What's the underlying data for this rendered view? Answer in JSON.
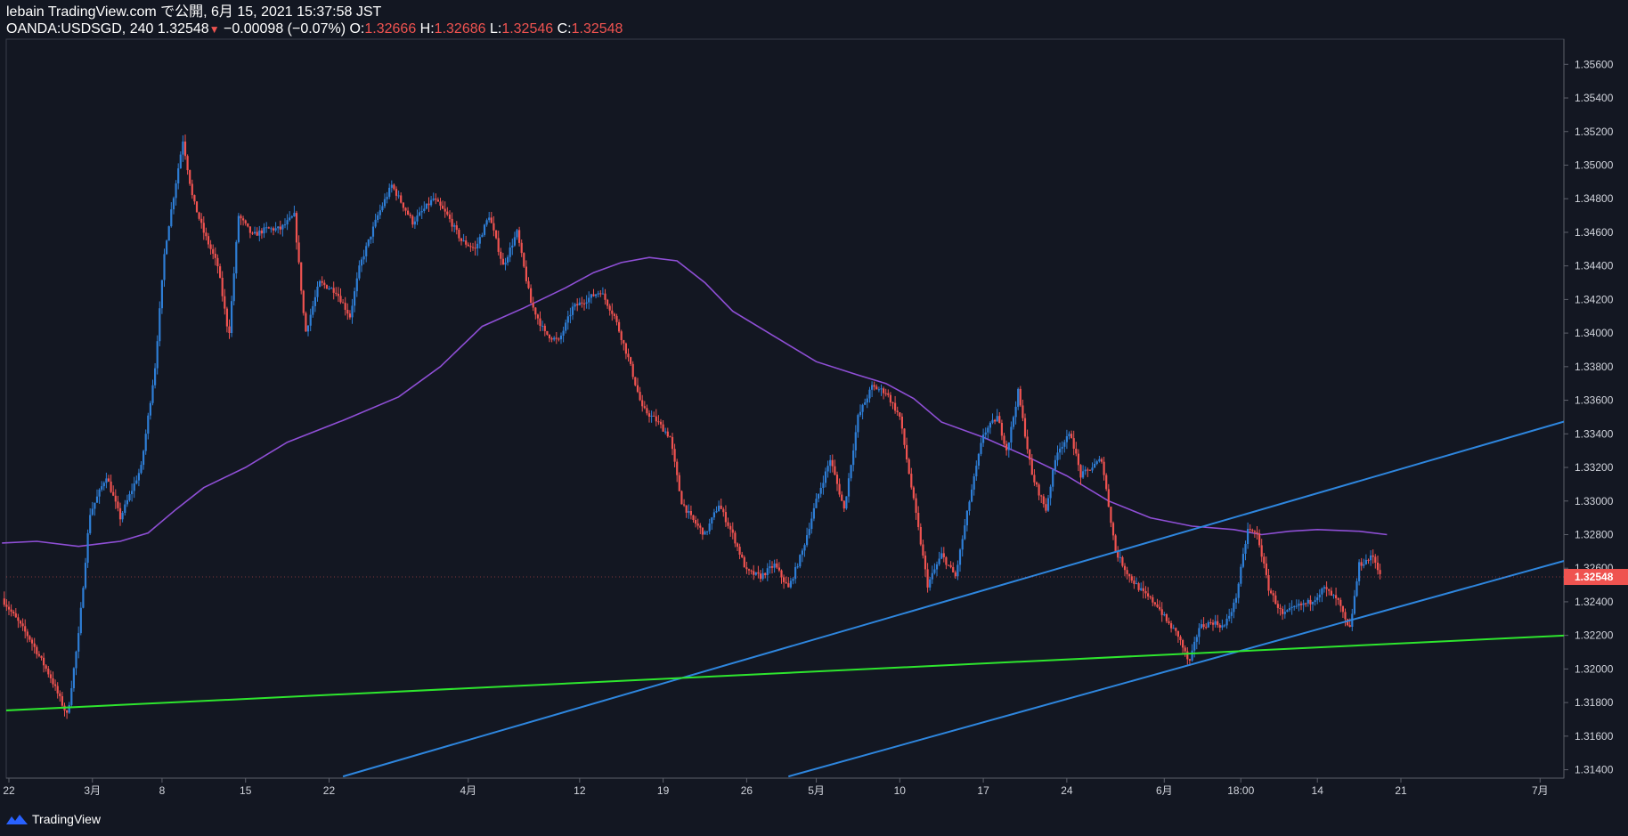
{
  "header": {
    "publish_line": "lebain TradingView.com で公開, 6月 15, 2021 15:37:58 JST",
    "symbol": "OANDA:USDSGD",
    "interval": "240",
    "last": "1.32548",
    "change": "−0.00098 (−0.07%)",
    "o_label": "O:",
    "o": "1.32666",
    "h_label": "H:",
    "h": "1.32686",
    "l_label": "L:",
    "l": "1.32546",
    "c_label": "C:",
    "c": "1.32548"
  },
  "footer": {
    "brand": "TradingView"
  },
  "colors": {
    "background": "#131722",
    "up": "#2e7ed6",
    "down": "#ef5350",
    "ma": "#8f4fd6",
    "trend_blue": "#2e86de",
    "trend_green": "#2ee62e",
    "axis_text": "#d1d4dc",
    "axis_line": "#3a3e4a",
    "price_label_bg": "#ef5350"
  },
  "chart_data": {
    "type": "candlestick",
    "symbol": "OANDA:USDSGD",
    "interval": "240",
    "y_range": [
      1.3135,
      1.3575
    ],
    "y_ticks": [
      "1.35600",
      "1.35400",
      "1.35200",
      "1.35000",
      "1.34800",
      "1.34600",
      "1.34400",
      "1.34200",
      "1.34000",
      "1.33800",
      "1.33600",
      "1.33400",
      "1.33200",
      "1.33000",
      "1.32800",
      "1.32600",
      "1.32400",
      "1.32200",
      "1.32000",
      "1.31800",
      "1.31600",
      "1.31400"
    ],
    "x_ticks": [
      {
        "label": "22",
        "day": 0
      },
      {
        "label": "3月",
        "day": 6
      },
      {
        "label": "8",
        "day": 11
      },
      {
        "label": "15",
        "day": 17
      },
      {
        "label": "22",
        "day": 23
      },
      {
        "label": "4月",
        "day": 33
      },
      {
        "label": "12",
        "day": 41
      },
      {
        "label": "19",
        "day": 47
      },
      {
        "label": "26",
        "day": 53
      },
      {
        "label": "5月",
        "day": 58
      },
      {
        "label": "10",
        "day": 64
      },
      {
        "label": "17",
        "day": 70
      },
      {
        "label": "24",
        "day": 76
      },
      {
        "label": "6月",
        "day": 83
      },
      {
        "label": "18:00",
        "day": 88.5
      },
      {
        "label": "14",
        "day": 94
      },
      {
        "label": "21",
        "day": 100
      },
      {
        "label": "7月",
        "day": 110
      }
    ],
    "last_price": "1.32548",
    "price_path": [
      [
        -0.5,
        1.3242
      ],
      [
        1.5,
        1.3218
      ],
      [
        3,
        1.3195
      ],
      [
        4.2,
        1.3172
      ],
      [
        5,
        1.322
      ],
      [
        5.8,
        1.3292
      ],
      [
        7,
        1.3315
      ],
      [
        8,
        1.329
      ],
      [
        9.5,
        1.332
      ],
      [
        10.5,
        1.338
      ],
      [
        11.2,
        1.345
      ],
      [
        12.5,
        1.3515
      ],
      [
        13.2,
        1.348
      ],
      [
        14,
        1.346
      ],
      [
        15,
        1.344
      ],
      [
        15.8,
        1.3398
      ],
      [
        16.5,
        1.347
      ],
      [
        17.5,
        1.3458
      ],
      [
        18.5,
        1.3462
      ],
      [
        19.5,
        1.3462
      ],
      [
        20.5,
        1.347
      ],
      [
        21.3,
        1.34
      ],
      [
        22.3,
        1.343
      ],
      [
        23.5,
        1.3425
      ],
      [
        24.5,
        1.341
      ],
      [
        25.2,
        1.344
      ],
      [
        26.5,
        1.347
      ],
      [
        27.5,
        1.3488
      ],
      [
        29,
        1.3466
      ],
      [
        30.5,
        1.348
      ],
      [
        31.5,
        1.347
      ],
      [
        32.5,
        1.3455
      ],
      [
        33.5,
        1.345
      ],
      [
        34.5,
        1.347
      ],
      [
        35.5,
        1.344
      ],
      [
        36.5,
        1.346
      ],
      [
        37.5,
        1.3418
      ],
      [
        38.5,
        1.34
      ],
      [
        39.5,
        1.3395
      ],
      [
        40.5,
        1.3415
      ],
      [
        41.5,
        1.342
      ],
      [
        42.5,
        1.3425
      ],
      [
        43.5,
        1.341
      ],
      [
        44.5,
        1.3385
      ],
      [
        45.5,
        1.3355
      ],
      [
        46.5,
        1.3348
      ],
      [
        47.5,
        1.3338
      ],
      [
        48.3,
        1.33
      ],
      [
        49,
        1.329
      ],
      [
        50,
        1.328
      ],
      [
        51,
        1.3298
      ],
      [
        52,
        1.328
      ],
      [
        53,
        1.3258
      ],
      [
        54,
        1.3255
      ],
      [
        55,
        1.3262
      ],
      [
        56,
        1.3248
      ],
      [
        57,
        1.327
      ],
      [
        58,
        1.33
      ],
      [
        59,
        1.3325
      ],
      [
        60,
        1.3295
      ],
      [
        61,
        1.335
      ],
      [
        62,
        1.3368
      ],
      [
        63,
        1.3365
      ],
      [
        64,
        1.335
      ],
      [
        65,
        1.33
      ],
      [
        66,
        1.325
      ],
      [
        67,
        1.3268
      ],
      [
        68,
        1.3255
      ],
      [
        69,
        1.33
      ],
      [
        70,
        1.334
      ],
      [
        71,
        1.335
      ],
      [
        71.7,
        1.333
      ],
      [
        72.5,
        1.3365
      ],
      [
        73.5,
        1.3315
      ],
      [
        74.5,
        1.3295
      ],
      [
        75.3,
        1.333
      ],
      [
        76.3,
        1.334
      ],
      [
        77,
        1.3315
      ],
      [
        77.8,
        1.332
      ],
      [
        78.5,
        1.3325
      ],
      [
        79.5,
        1.327
      ],
      [
        80.5,
        1.3255
      ],
      [
        81.5,
        1.3245
      ],
      [
        82.5,
        1.3238
      ],
      [
        83.2,
        1.3228
      ],
      [
        84,
        1.322
      ],
      [
        84.8,
        1.3203
      ],
      [
        85.5,
        1.3225
      ],
      [
        86.5,
        1.3228
      ],
      [
        87.3,
        1.3225
      ],
      [
        88.1,
        1.324
      ],
      [
        89,
        1.3283
      ],
      [
        89.7,
        1.328
      ],
      [
        90.5,
        1.3248
      ],
      [
        91.5,
        1.3232
      ],
      [
        92.5,
        1.3237
      ],
      [
        93.5,
        1.324
      ],
      [
        94.5,
        1.3248
      ],
      [
        95.5,
        1.324
      ],
      [
        96.3,
        1.3222
      ],
      [
        97,
        1.3262
      ],
      [
        98,
        1.3267
      ],
      [
        98.6,
        1.3255
      ]
    ],
    "moving_average": [
      [
        -0.5,
        1.3275
      ],
      [
        2,
        1.3276
      ],
      [
        5,
        1.3273
      ],
      [
        8,
        1.3276
      ],
      [
        10,
        1.3281
      ],
      [
        12,
        1.3295
      ],
      [
        14,
        1.3308
      ],
      [
        17,
        1.332
      ],
      [
        20,
        1.3335
      ],
      [
        24,
        1.3348
      ],
      [
        28,
        1.3362
      ],
      [
        31,
        1.338
      ],
      [
        34,
        1.3404
      ],
      [
        37,
        1.3415
      ],
      [
        40,
        1.3427
      ],
      [
        42,
        1.3436
      ],
      [
        44,
        1.3442
      ],
      [
        46,
        1.3445
      ],
      [
        48,
        1.3443
      ],
      [
        50,
        1.343
      ],
      [
        52,
        1.3413
      ],
      [
        55,
        1.3398
      ],
      [
        58,
        1.3383
      ],
      [
        61,
        1.3375
      ],
      [
        63,
        1.337
      ],
      [
        65,
        1.3361
      ],
      [
        67,
        1.3347
      ],
      [
        70,
        1.3338
      ],
      [
        73,
        1.3327
      ],
      [
        76,
        1.3315
      ],
      [
        79,
        1.33
      ],
      [
        82,
        1.329
      ],
      [
        85,
        1.3285
      ],
      [
        88,
        1.3283
      ],
      [
        90,
        1.328
      ],
      [
        92,
        1.3282
      ],
      [
        94,
        1.3283
      ],
      [
        97,
        1.3282
      ],
      [
        99,
        1.328
      ]
    ],
    "trendlines": [
      {
        "color": "#2e86de",
        "from": [
          24,
          1.3136
        ],
        "to": [
          112,
          1.3348
        ]
      },
      {
        "color": "#2e86de",
        "from": [
          56,
          1.3136
        ],
        "to": [
          112,
          1.3265
        ]
      },
      {
        "color": "#2ee62e",
        "from": [
          -1,
          1.3175
        ],
        "to": [
          112,
          1.322
        ]
      }
    ],
    "legend": "none",
    "grid": false
  }
}
